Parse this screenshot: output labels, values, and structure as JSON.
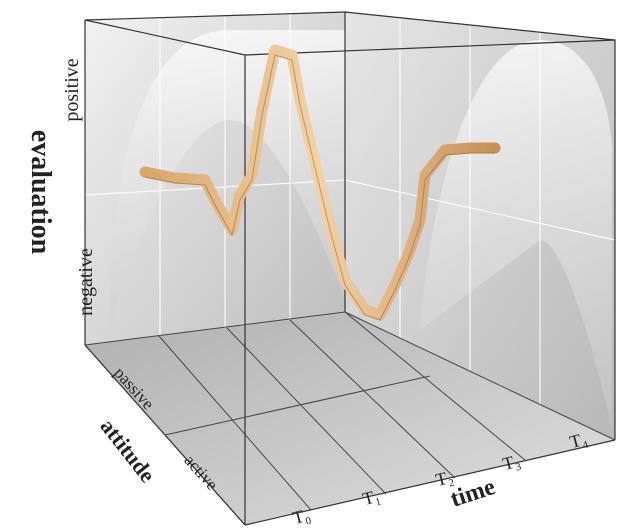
{
  "axes": {
    "evaluation": {
      "title": "evaluation",
      "high": "positive",
      "low": "negative"
    },
    "attitude": {
      "title": "attitude",
      "high": "passive",
      "low": "active"
    },
    "time": {
      "title": "time",
      "ticks": [
        "T₀",
        "T₁",
        "T₂",
        "T₃",
        "T₄"
      ]
    }
  }
}
